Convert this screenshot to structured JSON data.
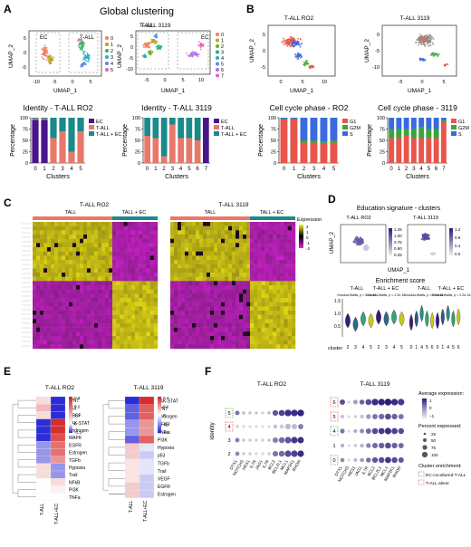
{
  "panels": {
    "A": {
      "letter": "A",
      "title": "Global clustering",
      "umap_left": {
        "subtitle": "T-ALL RO2",
        "box_labels": [
          "EC",
          "T-ALL"
        ],
        "xlabel": "UMAP_1",
        "ylabel": "UMAP_2",
        "xticks": [
          "-10",
          "-5",
          "0",
          "5"
        ],
        "yticks": [
          "5",
          "0",
          "-5"
        ],
        "legend": [
          "0",
          "1",
          "2",
          "3",
          "4",
          "5"
        ],
        "legend_colors": [
          "#f08060",
          "#b8a020",
          "#3ab060",
          "#20b0c0",
          "#6a80e8",
          "#e060c8"
        ]
      },
      "umap_right": {
        "subtitle": "T-ALL 3119",
        "box_labels": [
          "T-ALL",
          "EC"
        ],
        "xlabel": "UMAP_1",
        "ylabel": "UMAP_2",
        "xticks": [
          "-5",
          "0",
          "5",
          "10"
        ],
        "yticks": [
          "5",
          "0",
          "-5",
          "-10"
        ],
        "legend": [
          "0",
          "1",
          "2",
          "3",
          "4",
          "5",
          "6",
          "7"
        ],
        "legend_colors": [
          "#f08060",
          "#c0a020",
          "#70b020",
          "#20b070",
          "#20b0c0",
          "#5090f0",
          "#b070e8",
          "#e860b0"
        ]
      },
      "identity_legend": [
        "EC",
        "T-ALL",
        "T-ALL + EC"
      ],
      "identity_colors": [
        "#4a148c",
        "#e8786a",
        "#1a8a8a"
      ]
    },
    "B": {
      "letter": "B",
      "umap_left": {
        "subtitle": "T-ALL RO2",
        "xlabel": "UMAP_1",
        "ylabel": "UMAP_2",
        "xticks": [
          "0",
          "5",
          "10"
        ],
        "yticks": [
          "5",
          "0",
          "-5"
        ]
      },
      "umap_right": {
        "subtitle": "T-ALL 3119",
        "xlabel": "UMAP_1",
        "ylabel": "UMAP_2",
        "xticks": [
          "-5",
          "0",
          "5"
        ],
        "yticks": [
          "0",
          "-5",
          "-10"
        ]
      },
      "phase_legend": [
        "G1",
        "G2M",
        "S"
      ],
      "phase_colors": [
        "#e8554a",
        "#3aa63a",
        "#3a6ae0"
      ]
    },
    "C": {
      "letter": "C",
      "left_title": "T-ALL RO2",
      "right_title": "T-ALL 3119",
      "bars": [
        "TALL",
        "TALL + EC",
        "TALL",
        "TALL + EC"
      ],
      "bar_colors": [
        "#e8786a",
        "#1a8a8a"
      ],
      "legend_title": "Expression",
      "legend_ticks": [
        "2",
        "1",
        "0",
        "-1",
        "-2"
      ]
    },
    "D": {
      "letter": "D",
      "title": "Education signature - clusters",
      "left_sub": "T-ALL RO2",
      "right_sub": "T-ALL 3119",
      "xlabel": "UMAP_1",
      "ylabel": "UMAP_2",
      "left_scale": [
        "1.25",
        "1.00",
        "0.75",
        "0.50",
        "0.25"
      ],
      "right_scale": [
        "1.2",
        "0.8",
        "0.4",
        "0.0"
      ],
      "enrich_title": "Enrichment score",
      "groups": [
        "T-ALL",
        "T-ALL + EC",
        "T-ALL",
        "T-ALL + EC"
      ],
      "stat": [
        "Kruskal-Wallis, p < 2.2e-16",
        "Kruskal-Wallis, p < 2.2e-16",
        "Kruskal-Wallis, p = 2.2e-16",
        "Kruskal-Wallis, p < 2.2e-16"
      ],
      "cluster_label": "cluster",
      "left_clusters": [
        "2",
        "3",
        "4",
        "5",
        "2",
        "3",
        "4",
        "5"
      ],
      "right_clusters": [
        "0",
        "1",
        "4",
        "5",
        "6",
        "0",
        "1",
        "4",
        "5",
        "6"
      ],
      "yticks": [
        "1.5",
        "1.0",
        "0.5"
      ]
    },
    "E": {
      "letter": "E",
      "left_title": "T-ALL RO2",
      "right_title": "T-ALL 3119",
      "columns": [
        "T-ALL",
        "T-ALL+EC"
      ]
    },
    "F": {
      "letter": "F",
      "left_title": "T-ALL RO2",
      "right_title": "T-ALL 3119",
      "ylabel": "Identity",
      "left_rows": [
        "5",
        "4",
        "3",
        "2"
      ],
      "right_rows": [
        "6",
        "5",
        "4",
        "1",
        "0"
      ],
      "legend": {
        "avg_title": "Average expression:",
        "avg_ticks": [
          "1",
          "0",
          "−1"
        ],
        "pct_title": "Percent expressed:",
        "pct_ticks": [
          "25",
          "50",
          "75",
          "100"
        ],
        "enrich_title": "Cluster enrichment:",
        "enrich_items": [
          "EC-cocultured T-ALL",
          "T-ALL alone"
        ]
      }
    }
  },
  "chart_data": [
    {
      "type": "bar",
      "title": "Identity - T-ALL RO2",
      "xlabel": "Clusters",
      "ylabel": "Percentage",
      "categories": [
        "0",
        "1",
        "2",
        "3",
        "4",
        "5"
      ],
      "ylim": [
        0,
        100
      ],
      "yticks": [
        "100",
        "75",
        "50",
        "25",
        "0"
      ],
      "series": [
        {
          "name": "EC",
          "values": [
            95,
            95,
            0,
            0,
            0,
            0
          ]
        },
        {
          "name": "T-ALL",
          "values": [
            3,
            3,
            55,
            70,
            25,
            70
          ]
        },
        {
          "name": "T-ALL + EC",
          "values": [
            2,
            2,
            45,
            30,
            75,
            30
          ]
        }
      ]
    },
    {
      "type": "bar",
      "title": "Identity - T-ALL 3119",
      "xlabel": "Clusters",
      "ylabel": "Percentage",
      "categories": [
        "0",
        "1",
        "2",
        "3",
        "4",
        "5",
        "6",
        "7"
      ],
      "ylim": [
        0,
        100
      ],
      "yticks": [
        "100",
        "75",
        "50",
        "25",
        "0"
      ],
      "series": [
        {
          "name": "EC",
          "values": [
            0,
            0,
            0,
            0,
            0,
            0,
            0,
            100
          ]
        },
        {
          "name": "T-ALL",
          "values": [
            60,
            55,
            15,
            85,
            55,
            55,
            50,
            0
          ]
        },
        {
          "name": "T-ALL + EC",
          "values": [
            40,
            45,
            85,
            15,
            45,
            45,
            50,
            0
          ]
        }
      ]
    },
    {
      "type": "bar",
      "title": "Cell cycle phase - RO2",
      "xlabel": "Clusters",
      "ylabel": "Percentage",
      "categories": [
        "0",
        "1",
        "2",
        "3",
        "4",
        "5"
      ],
      "ylim": [
        0,
        100
      ],
      "yticks": [
        "100",
        "75",
        "50",
        "25",
        "0"
      ],
      "series": [
        {
          "name": "G1",
          "values": [
            96,
            96,
            45,
            45,
            43,
            45
          ]
        },
        {
          "name": "G2M",
          "values": [
            2,
            2,
            5,
            5,
            5,
            5
          ]
        },
        {
          "name": "S",
          "values": [
            2,
            2,
            50,
            50,
            52,
            50
          ]
        }
      ]
    },
    {
      "type": "bar",
      "title": "Cell cycle phase - 3119",
      "xlabel": "Clusters",
      "ylabel": "Percentage",
      "categories": [
        "0",
        "1",
        "2",
        "3",
        "4",
        "5",
        "6",
        "7"
      ],
      "ylim": [
        0,
        100
      ],
      "yticks": [
        "100",
        "75",
        "50",
        "25",
        "0"
      ],
      "series": [
        {
          "name": "G1",
          "values": [
            55,
            55,
            60,
            55,
            55,
            55,
            55,
            90
          ]
        },
        {
          "name": "G2M",
          "values": [
            20,
            20,
            15,
            20,
            25,
            20,
            20,
            5
          ]
        },
        {
          "name": "S",
          "values": [
            25,
            25,
            25,
            25,
            20,
            25,
            25,
            5
          ]
        }
      ]
    },
    {
      "type": "heatmap",
      "title": "T-ALL RO2",
      "rows": [
        "WNT",
        "p53",
        "VEGF",
        "JAK-STAT",
        "Androgen",
        "MAPK",
        "EGFR",
        "Estrogen",
        "TGFb",
        "Hypoxia",
        "Trail",
        "NFkB",
        "PI3K",
        "TNFa"
      ],
      "columns": [
        "T-ALL",
        "T-ALL+EC"
      ],
      "values": [
        [
          0.05,
          -0.1
        ],
        [
          0.1,
          -0.1
        ],
        [
          0.05,
          -0.1
        ],
        [
          -0.1,
          0.3
        ],
        [
          -0.1,
          0.3
        ],
        [
          -0.1,
          0.25
        ],
        [
          -0.05,
          0.2
        ],
        [
          -0.05,
          0.2
        ],
        [
          -0.05,
          0.15
        ],
        [
          0.05,
          -0.05
        ],
        [
          0.05,
          -0.05
        ],
        [
          0.0,
          0.05
        ],
        [
          0.0,
          0.02
        ],
        [
          0.0,
          0.0
        ]
      ],
      "scale_ticks": [
        "0.3",
        "0.2",
        "0.1",
        "0",
        "-0.1"
      ],
      "vmin": -0.1,
      "vmax": 0.3
    },
    {
      "type": "heatmap",
      "title": "T-ALL 3119",
      "rows": [
        "JAK-STAT",
        "WNT",
        "Androgen",
        "NFkB",
        "TNFa",
        "PI3K",
        "Hypoxia",
        "p53",
        "TGFb",
        "Trail",
        "VEGF",
        "EGFR",
        "Estrogen"
      ],
      "columns": [
        "T-ALL",
        "T-ALL+EC"
      ],
      "values": [
        [
          -0.4,
          0.4
        ],
        [
          -0.3,
          0.3
        ],
        [
          -0.3,
          0.3
        ],
        [
          -0.2,
          0.2
        ],
        [
          -0.2,
          0.2
        ],
        [
          -0.3,
          0.3
        ],
        [
          0.1,
          -0.05
        ],
        [
          0.1,
          -0.1
        ],
        [
          0.05,
          -0.05
        ],
        [
          0.05,
          -0.05
        ],
        [
          0.05,
          -0.1
        ],
        [
          0.1,
          -0.1
        ],
        [
          0.1,
          -0.1
        ]
      ],
      "scale_ticks": [
        "0.4",
        "0.2",
        "0",
        "-0.2",
        "-0.4"
      ],
      "vmin": -0.4,
      "vmax": 0.4
    },
    {
      "type": "scatter",
      "title": "T-ALL RO2",
      "genes": [
        "DTX1",
        "NOTCH3",
        "HES1",
        "IL7R",
        "JAG1",
        "IL7R",
        "BCL2",
        "BCL2L1",
        "MCL1",
        "MAP2K1",
        "RHOH"
      ],
      "rows": [
        "5",
        "4",
        "3",
        "2"
      ],
      "avg": [
        [
          0.2,
          -0.5,
          -0.6,
          -0.6,
          -0.7,
          -0.5,
          0.5,
          0.7,
          0.9,
          0.9,
          1.0
        ],
        [
          -0.8,
          -0.8,
          -0.8,
          -0.8,
          -0.8,
          -0.8,
          -0.6,
          -0.7,
          -0.5,
          -0.5,
          0.1
        ],
        [
          0.1,
          -0.6,
          -0.7,
          -0.7,
          -0.7,
          -0.6,
          0.1,
          0.3,
          0.5,
          0.8,
          0.9
        ],
        [
          0.0,
          -0.7,
          -0.7,
          -0.8,
          -0.8,
          -0.7,
          0.2,
          0.3,
          0.6,
          0.7,
          0.9
        ]
      ],
      "pct": [
        [
          30,
          10,
          10,
          8,
          8,
          10,
          60,
          70,
          90,
          90,
          90
        ],
        [
          15,
          8,
          6,
          6,
          5,
          6,
          25,
          30,
          60,
          50,
          50
        ],
        [
          30,
          10,
          10,
          8,
          8,
          10,
          55,
          65,
          85,
          85,
          80
        ],
        [
          28,
          10,
          10,
          8,
          8,
          10,
          55,
          65,
          85,
          85,
          85
        ]
      ]
    },
    {
      "type": "scatter",
      "title": "T-ALL 3119",
      "genes": [
        "DTX1",
        "NOTCH3",
        "HES1",
        "JAG1",
        "IL7R",
        "BCL2",
        "BCL2L1",
        "MCL1",
        "MAP2K1",
        "RHOH"
      ],
      "rows": [
        "6",
        "5",
        "4",
        "1",
        "0"
      ],
      "avg": [
        [
          0.6,
          -0.8,
          -0.2,
          0.4,
          0.6,
          0.9,
          1.0,
          1.1,
          0.9,
          0.8
        ],
        [
          -0.6,
          -0.8,
          -0.7,
          -0.6,
          -0.2,
          0.2,
          0.3,
          0.6,
          0.4,
          0.2
        ],
        [
          0.2,
          -0.8,
          -0.4,
          0.0,
          0.3,
          0.6,
          0.8,
          0.9,
          0.7,
          0.6
        ],
        [
          -0.4,
          -0.8,
          -0.6,
          -0.4,
          0.0,
          0.3,
          0.4,
          0.6,
          0.4,
          0.3
        ],
        [
          0.0,
          -0.8,
          -0.5,
          -0.2,
          0.2,
          0.5,
          0.6,
          0.8,
          0.6,
          0.5
        ]
      ],
      "pct": [
        [
          50,
          8,
          30,
          40,
          70,
          90,
          90,
          95,
          90,
          85
        ],
        [
          20,
          5,
          10,
          20,
          40,
          50,
          60,
          70,
          60,
          50
        ],
        [
          35,
          5,
          20,
          30,
          55,
          70,
          75,
          85,
          75,
          65
        ],
        [
          20,
          5,
          10,
          20,
          40,
          55,
          60,
          70,
          60,
          50
        ],
        [
          25,
          5,
          15,
          25,
          45,
          60,
          65,
          75,
          65,
          55
        ]
      ]
    }
  ]
}
